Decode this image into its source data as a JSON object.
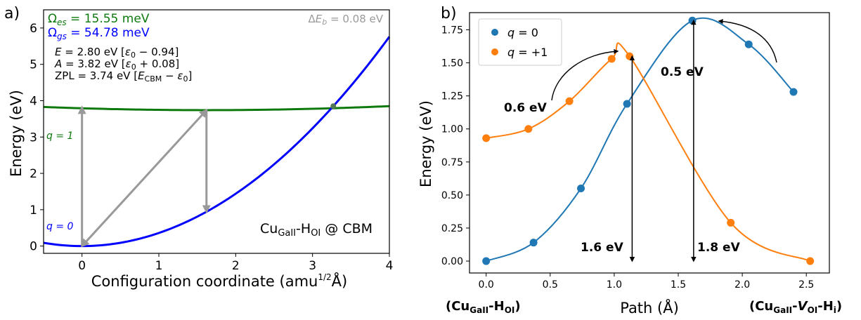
{
  "panels": [
    {
      "id": "a",
      "letter": "a)",
      "xlabel": "Configuration coordinate (amu^1/2 Å)",
      "xlabel_main": "Configuration coordinate (amu",
      "xlabel_exp": "1/2",
      "xlabel_tail": "Å)",
      "ylabel": "Energy (eV)",
      "info": {
        "omega_es": "Ωes = 15.55 meV",
        "omega_gs": "Ωgs = 54.78 meV",
        "delta_eb": "ΔEb = 0.08 eV",
        "E": "E = 2.80 eV [ε0 − 0.94]",
        "A": "A = 3.82 eV [ε0 + 0.08]",
        "ZPL": "ZPL = 3.74 eV [ECBM − ε0]"
      },
      "label_q1": "q = 1",
      "label_q0": "q = 0",
      "defect_label": "CuGaII-HOI @ CBM",
      "colors": {
        "excited": "#0e7a0e",
        "ground": "#0000ff",
        "arrows": "#999999"
      }
    },
    {
      "id": "b",
      "letter": "b)",
      "xlabel": "Path (Å)",
      "ylabel": "Energy (eV)",
      "endpoint_left": "(CuGaII-HOI)",
      "endpoint_right": "(CuGaII-VOI-Hi)",
      "annotations": [
        "0.5 eV",
        "0.6 eV",
        "1.6 eV",
        "1.8 eV"
      ],
      "colors": {
        "q0": "#1f77b4",
        "q1": "#ff7f0e"
      }
    }
  ],
  "chart_data": [
    {
      "type": "line",
      "title": "",
      "xlabel": "Configuration coordinate (amu^1/2 Å)",
      "ylabel": "Energy (eV)",
      "xlim": [
        -0.5,
        4
      ],
      "ylim": [
        -0.2,
        6.5
      ],
      "xticks": [
        0,
        1,
        2,
        3,
        4
      ],
      "yticks": [
        0,
        1,
        2,
        3,
        4,
        5,
        6
      ],
      "series": [
        {
          "name": "q = 1",
          "x": [
            -0.5,
            0,
            0.5,
            1,
            1.5,
            1.62,
            2,
            2.5,
            3,
            3.5,
            4
          ],
          "y": [
            3.87,
            3.82,
            3.79,
            3.76,
            3.745,
            3.74,
            3.745,
            3.76,
            3.79,
            3.83,
            3.87
          ]
        },
        {
          "name": "q = 0",
          "x": [
            -0.5,
            -0.25,
            0,
            0.5,
            1,
            1.5,
            1.62,
            2,
            2.5,
            3,
            3.27,
            3.5,
            4
          ],
          "y": [
            0.09,
            0.02,
            0.0,
            0.09,
            0.36,
            0.81,
            0.94,
            1.44,
            2.25,
            3.24,
            3.85,
            4.41,
            5.76
          ]
        }
      ],
      "arrows": [
        {
          "from": [
            0,
            0
          ],
          "to": [
            0,
            3.82
          ],
          "label": "A"
        },
        {
          "from": [
            0,
            0
          ],
          "to": [
            1.62,
            3.74
          ],
          "label": "ZPL"
        },
        {
          "from": [
            1.62,
            3.74
          ],
          "to": [
            1.62,
            0.94
          ],
          "label": "E"
        }
      ],
      "crossing": [
        3.27,
        3.85
      ]
    },
    {
      "type": "line",
      "title": "",
      "xlabel": "Path (Å)",
      "ylabel": "Energy (eV)",
      "xlim": [
        -0.13,
        2.68
      ],
      "ylim": [
        -0.09,
        1.88
      ],
      "xticks": [
        0.0,
        0.5,
        1.0,
        1.5,
        2.0,
        2.5
      ],
      "yticks": [
        0.0,
        0.25,
        0.5,
        0.75,
        1.0,
        1.25,
        1.5,
        1.75
      ],
      "legend": "top-left",
      "series": [
        {
          "name": "q = 0",
          "x": [
            0.0,
            0.37,
            0.74,
            1.1,
            1.61,
            2.05,
            2.4
          ],
          "y": [
            0.0,
            0.14,
            0.55,
            1.19,
            1.82,
            1.64,
            1.28
          ]
        },
        {
          "name": "q = +1",
          "x": [
            0.0,
            0.33,
            0.65,
            0.98,
            1.12,
            1.91,
            2.53
          ],
          "y": [
            0.93,
            1.0,
            1.21,
            1.53,
            1.55,
            0.29,
            0.0
          ]
        }
      ],
      "barriers": [
        {
          "label": "1.6 eV",
          "x": 1.14,
          "y_from": 0.0,
          "y_to": 1.55
        },
        {
          "label": "1.8 eV",
          "x": 1.62,
          "y_from": 0.0,
          "y_to": 1.82
        },
        {
          "label": "0.6 eV",
          "note": "curved arrow to q=+1 peak"
        },
        {
          "label": "0.5 eV",
          "note": "curved arrow to q=0 peak"
        }
      ]
    }
  ]
}
